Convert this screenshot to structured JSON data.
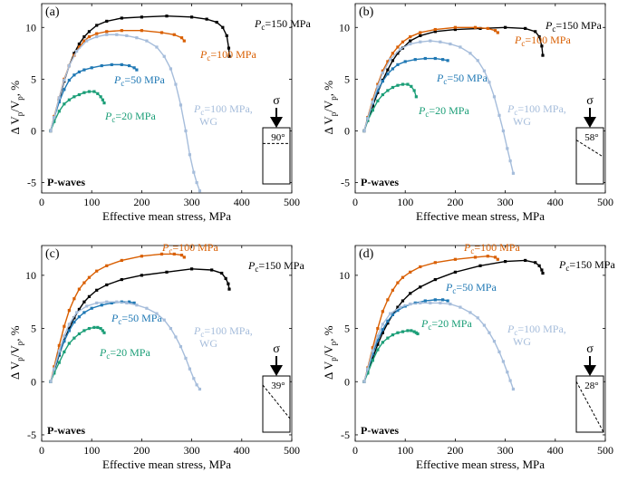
{
  "figure": {
    "x_label": "Effective mean stress, MPa",
    "y_label_parts": [
      "Δ V",
      "p",
      "/V",
      "p",
      ", %"
    ],
    "colors": {
      "pc150": "#000000",
      "pc100": "#d95f02",
      "pc50": "#1f78b4",
      "pc20": "#1b9e77",
      "wg": "#a6bddb",
      "axis": "#000000"
    },
    "sigma_symbol": "σ"
  },
  "chart_data": [
    {
      "type": "line",
      "panel_label": "(a)",
      "wave_label": "P-waves",
      "angle_label": "90°",
      "angle_deg": 90,
      "xlim": [
        0,
        500
      ],
      "ylim": [
        -6,
        12.3
      ],
      "xticks": [
        0,
        100,
        200,
        300,
        400,
        500
      ],
      "yticks": [
        -5,
        0,
        5,
        10
      ],
      "series": [
        {
          "name": "P=150 MPa",
          "key": "pc150",
          "label_p": "P",
          "label_sub": "c",
          "label_rest": "=150 MPa",
          "x": [
            18,
            25,
            35,
            45,
            55,
            65,
            75,
            85,
            95,
            110,
            130,
            160,
            200,
            250,
            300,
            330,
            350,
            362,
            370,
            374,
            375
          ],
          "y": [
            0,
            1.3,
            3.0,
            4.8,
            6.3,
            7.5,
            8.4,
            9.1,
            9.6,
            10.2,
            10.6,
            10.9,
            11.0,
            11.1,
            11.0,
            10.8,
            10.5,
            10.0,
            9.2,
            8.0,
            7.2
          ]
        },
        {
          "name": "P=100 MPa",
          "key": "pc100",
          "label_p": "P",
          "label_sub": "c",
          "label_rest": "=100 MPa",
          "x": [
            18,
            25,
            35,
            45,
            55,
            65,
            75,
            85,
            95,
            110,
            130,
            160,
            200,
            240,
            265,
            280,
            285
          ],
          "y": [
            0,
            1.4,
            3.2,
            5.0,
            6.3,
            7.3,
            8.1,
            8.7,
            9.1,
            9.4,
            9.6,
            9.7,
            9.7,
            9.5,
            9.3,
            9.0,
            8.7
          ]
        },
        {
          "name": "P=50 MPa",
          "key": "pc50",
          "label_p": "P",
          "label_sub": "c",
          "label_rest": "=50 MPa",
          "x": [
            18,
            25,
            35,
            45,
            55,
            65,
            75,
            85,
            100,
            120,
            140,
            160,
            175,
            185,
            190
          ],
          "y": [
            0,
            1.3,
            2.8,
            4.0,
            4.9,
            5.4,
            5.7,
            5.9,
            6.1,
            6.3,
            6.4,
            6.4,
            6.3,
            6.1,
            5.9
          ]
        },
        {
          "name": "P=20 MPa",
          "key": "pc20",
          "label_p": "P",
          "label_sub": "c",
          "label_rest": "=20 MPa",
          "x": [
            18,
            25,
            35,
            45,
            55,
            65,
            75,
            85,
            95,
            105,
            112,
            118,
            122,
            125
          ],
          "y": [
            0,
            0.9,
            1.9,
            2.6,
            3.0,
            3.3,
            3.5,
            3.7,
            3.8,
            3.8,
            3.6,
            3.3,
            3.0,
            2.7
          ]
        },
        {
          "name": "P=100 MPa, WG",
          "key": "wg",
          "label_p": "P",
          "label_sub": "c",
          "label_rest": "=100 MPa,",
          "label_line2": "WG",
          "x": [
            18,
            25,
            35,
            45,
            55,
            70,
            90,
            110,
            130,
            150,
            170,
            190,
            210,
            230,
            245,
            258,
            268,
            278,
            288,
            296,
            304,
            310,
            316
          ],
          "y": [
            0,
            1.3,
            3.2,
            4.9,
            6.3,
            7.7,
            8.7,
            9.1,
            9.3,
            9.3,
            9.2,
            9.0,
            8.7,
            8.1,
            7.2,
            6.0,
            4.5,
            2.5,
            0.0,
            -2.3,
            -4.0,
            -5.0,
            -5.8
          ]
        }
      ]
    },
    {
      "type": "line",
      "panel_label": "(b)",
      "wave_label": "P-waves",
      "angle_label": "58°",
      "angle_deg": 58,
      "xlim": [
        0,
        500
      ],
      "ylim": [
        -6,
        12.3
      ],
      "xticks": [
        0,
        100,
        200,
        300,
        400,
        500
      ],
      "yticks": [
        -5,
        0,
        5,
        10
      ],
      "series": [
        {
          "name": "P=150 MPa",
          "key": "pc150",
          "label_p": "P",
          "label_sub": "c",
          "label_rest": "=150 MPa",
          "x": [
            18,
            25,
            35,
            45,
            55,
            65,
            75,
            85,
            95,
            110,
            130,
            160,
            200,
            250,
            300,
            340,
            360,
            368,
            373,
            375
          ],
          "y": [
            0,
            1.0,
            2.4,
            3.7,
            4.9,
            5.9,
            6.8,
            7.5,
            8.0,
            8.7,
            9.2,
            9.6,
            9.8,
            9.9,
            10.0,
            9.9,
            9.6,
            9.1,
            8.2,
            7.3
          ]
        },
        {
          "name": "P=100 MPa",
          "key": "pc100",
          "label_p": "P",
          "label_sub": "c",
          "label_rest": "=100 MPa",
          "x": [
            18,
            25,
            35,
            45,
            55,
            65,
            75,
            85,
            95,
            110,
            130,
            160,
            200,
            240,
            265,
            280,
            285
          ],
          "y": [
            0,
            1.3,
            3.0,
            4.5,
            5.8,
            6.7,
            7.5,
            8.1,
            8.6,
            9.1,
            9.5,
            9.8,
            10.0,
            10.0,
            9.9,
            9.7,
            9.5
          ]
        },
        {
          "name": "P=50 MPa",
          "key": "pc50",
          "label_p": "P",
          "label_sub": "c",
          "label_rest": "=50 MPa",
          "x": [
            18,
            25,
            35,
            45,
            55,
            65,
            75,
            85,
            100,
            120,
            140,
            160,
            175,
            185
          ],
          "y": [
            0,
            1.2,
            2.7,
            3.9,
            4.8,
            5.5,
            6.0,
            6.4,
            6.7,
            6.9,
            7.0,
            7.0,
            6.9,
            6.8
          ]
        },
        {
          "name": "P=20 MPa",
          "key": "pc20",
          "label_p": "P",
          "label_sub": "c",
          "label_rest": "=20 MPa",
          "x": [
            18,
            25,
            35,
            45,
            55,
            65,
            75,
            85,
            95,
            105,
            112,
            118,
            122
          ],
          "y": [
            0,
            1.0,
            2.0,
            2.9,
            3.5,
            3.9,
            4.2,
            4.4,
            4.5,
            4.5,
            4.3,
            3.9,
            3.3
          ]
        },
        {
          "name": "P=100 MPa, WG",
          "key": "wg",
          "label_p": "P",
          "label_sub": "c",
          "label_rest": "=100 MPa,",
          "label_line2": "WG",
          "x": [
            18,
            25,
            35,
            45,
            55,
            70,
            90,
            110,
            130,
            150,
            170,
            190,
            210,
            230,
            245,
            258,
            268,
            278,
            288,
            296,
            304,
            310,
            316
          ],
          "y": [
            0,
            1.2,
            2.8,
            4.3,
            5.6,
            6.9,
            7.9,
            8.4,
            8.6,
            8.7,
            8.6,
            8.4,
            8.1,
            7.5,
            6.8,
            5.8,
            4.7,
            3.3,
            1.5,
            0.0,
            -1.7,
            -2.9,
            -4.1
          ]
        }
      ]
    },
    {
      "type": "line",
      "panel_label": "(c)",
      "wave_label": "P-waves",
      "angle_label": "39°",
      "angle_deg": 39,
      "xlim": [
        0,
        500
      ],
      "ylim": [
        -5.6,
        12.8
      ],
      "xticks": [
        0,
        100,
        200,
        300,
        400,
        500
      ],
      "yticks": [
        -5,
        0,
        5,
        10
      ],
      "series": [
        {
          "name": "P=150 MPa",
          "key": "pc150",
          "label_p": "P",
          "label_sub": "c",
          "label_rest": "=150 MPa",
          "x": [
            18,
            25,
            35,
            45,
            55,
            65,
            75,
            85,
            95,
            110,
            130,
            160,
            200,
            250,
            300,
            340,
            360,
            368,
            373,
            375
          ],
          "y": [
            0,
            1.0,
            2.5,
            3.9,
            5.0,
            6.0,
            6.8,
            7.5,
            8.0,
            8.6,
            9.1,
            9.6,
            10.0,
            10.3,
            10.6,
            10.5,
            10.2,
            9.7,
            9.2,
            8.7
          ]
        },
        {
          "name": "P=100 MPa",
          "key": "pc100",
          "label_p": "P",
          "label_sub": "c",
          "label_rest": "=100 MPa",
          "x": [
            18,
            25,
            35,
            45,
            55,
            65,
            75,
            85,
            95,
            110,
            130,
            160,
            200,
            240,
            265,
            280,
            285
          ],
          "y": [
            0,
            1.4,
            3.4,
            5.2,
            6.7,
            7.8,
            8.7,
            9.3,
            9.8,
            10.4,
            10.9,
            11.4,
            11.8,
            12.0,
            12.0,
            11.9,
            11.7
          ]
        },
        {
          "name": "P=50 MPa",
          "key": "pc50",
          "label_p": "P",
          "label_sub": "c",
          "label_rest": "=50 MPa",
          "x": [
            18,
            25,
            35,
            45,
            55,
            65,
            75,
            85,
            100,
            120,
            140,
            160,
            175,
            185
          ],
          "y": [
            0,
            1.1,
            2.6,
            3.8,
            4.8,
            5.6,
            6.1,
            6.5,
            6.9,
            7.2,
            7.4,
            7.5,
            7.5,
            7.4
          ]
        },
        {
          "name": "P=20 MPa",
          "key": "pc20",
          "label_p": "P",
          "label_sub": "c",
          "label_rest": "=20 MPa",
          "x": [
            18,
            25,
            35,
            45,
            55,
            65,
            75,
            85,
            95,
            105,
            112,
            118,
            122,
            125
          ],
          "y": [
            0,
            0.8,
            1.8,
            2.8,
            3.6,
            4.1,
            4.5,
            4.8,
            5.0,
            5.1,
            5.1,
            5.0,
            4.8,
            4.6
          ]
        },
        {
          "name": "P=100 MPa, WG",
          "key": "wg",
          "label_p": "P",
          "label_sub": "c",
          "label_rest": "=100 MPa,",
          "label_line2": "WG",
          "x": [
            18,
            25,
            35,
            45,
            55,
            70,
            90,
            110,
            130,
            150,
            170,
            190,
            210,
            230,
            245,
            258,
            268,
            278,
            288,
            296,
            304,
            310,
            316
          ],
          "y": [
            0,
            1.2,
            2.9,
            4.3,
            5.4,
            6.5,
            7.1,
            7.4,
            7.5,
            7.5,
            7.4,
            7.2,
            6.9,
            6.4,
            5.8,
            5.0,
            4.2,
            3.3,
            2.2,
            1.2,
            0.3,
            -0.3,
            -0.7
          ]
        }
      ]
    },
    {
      "type": "line",
      "panel_label": "(d)",
      "wave_label": "P-waves",
      "angle_label": "28°",
      "angle_deg": 28,
      "xlim": [
        0,
        500
      ],
      "ylim": [
        -5.6,
        12.8
      ],
      "xticks": [
        0,
        100,
        200,
        300,
        400,
        500
      ],
      "yticks": [
        -5,
        0,
        5,
        10
      ],
      "series": [
        {
          "name": "P=150 MPa",
          "key": "pc150",
          "label_p": "P",
          "label_sub": "c",
          "label_rest": "=150 MPa",
          "x": [
            18,
            25,
            35,
            45,
            55,
            65,
            75,
            85,
            95,
            110,
            130,
            160,
            200,
            250,
            300,
            340,
            360,
            368,
            373,
            375
          ],
          "y": [
            0,
            0.9,
            2.2,
            3.5,
            4.6,
            5.5,
            6.3,
            7.0,
            7.6,
            8.3,
            8.9,
            9.6,
            10.3,
            10.9,
            11.3,
            11.4,
            11.2,
            10.9,
            10.5,
            10.2
          ]
        },
        {
          "name": "P=100 MPa",
          "key": "pc100",
          "label_p": "P",
          "label_sub": "c",
          "label_rest": "=100 MPa",
          "x": [
            18,
            25,
            35,
            45,
            55,
            65,
            75,
            85,
            95,
            110,
            130,
            160,
            200,
            240,
            265,
            280,
            285
          ],
          "y": [
            0,
            1.3,
            3.2,
            5.0,
            6.6,
            7.7,
            8.6,
            9.3,
            9.8,
            10.3,
            10.8,
            11.2,
            11.5,
            11.7,
            11.8,
            11.7,
            11.5
          ]
        },
        {
          "name": "P=50 MPa",
          "key": "pc50",
          "label_p": "P",
          "label_sub": "c",
          "label_rest": "=50 MPa",
          "x": [
            18,
            25,
            35,
            45,
            55,
            65,
            75,
            85,
            100,
            120,
            140,
            160,
            175,
            185
          ],
          "y": [
            0,
            1.1,
            2.6,
            3.9,
            4.9,
            5.7,
            6.3,
            6.7,
            7.1,
            7.4,
            7.6,
            7.7,
            7.7,
            7.6
          ]
        },
        {
          "name": "P=20 MPa",
          "key": "pc20",
          "label_p": "P",
          "label_sub": "c",
          "label_rest": "=20 MPa",
          "x": [
            18,
            25,
            35,
            45,
            55,
            65,
            75,
            85,
            95,
            105,
            112,
            118,
            122,
            125
          ],
          "y": [
            0,
            0.8,
            2.0,
            3.0,
            3.7,
            4.1,
            4.4,
            4.6,
            4.7,
            4.8,
            4.8,
            4.7,
            4.6,
            4.5
          ]
        },
        {
          "name": "P=100 MPa, WG",
          "key": "wg",
          "label_p": "P",
          "label_sub": "c",
          "label_rest": "=100 MPa,",
          "label_line2": "WG",
          "x": [
            18,
            25,
            35,
            45,
            55,
            70,
            90,
            110,
            130,
            150,
            170,
            190,
            210,
            230,
            245,
            258,
            268,
            278,
            288,
            296,
            304,
            310,
            316
          ],
          "y": [
            0,
            1.2,
            2.9,
            4.3,
            5.4,
            6.4,
            7.0,
            7.3,
            7.4,
            7.4,
            7.4,
            7.3,
            7.0,
            6.5,
            6.0,
            5.3,
            4.6,
            3.8,
            2.8,
            1.9,
            0.9,
            0.1,
            -0.7
          ]
        }
      ]
    }
  ]
}
